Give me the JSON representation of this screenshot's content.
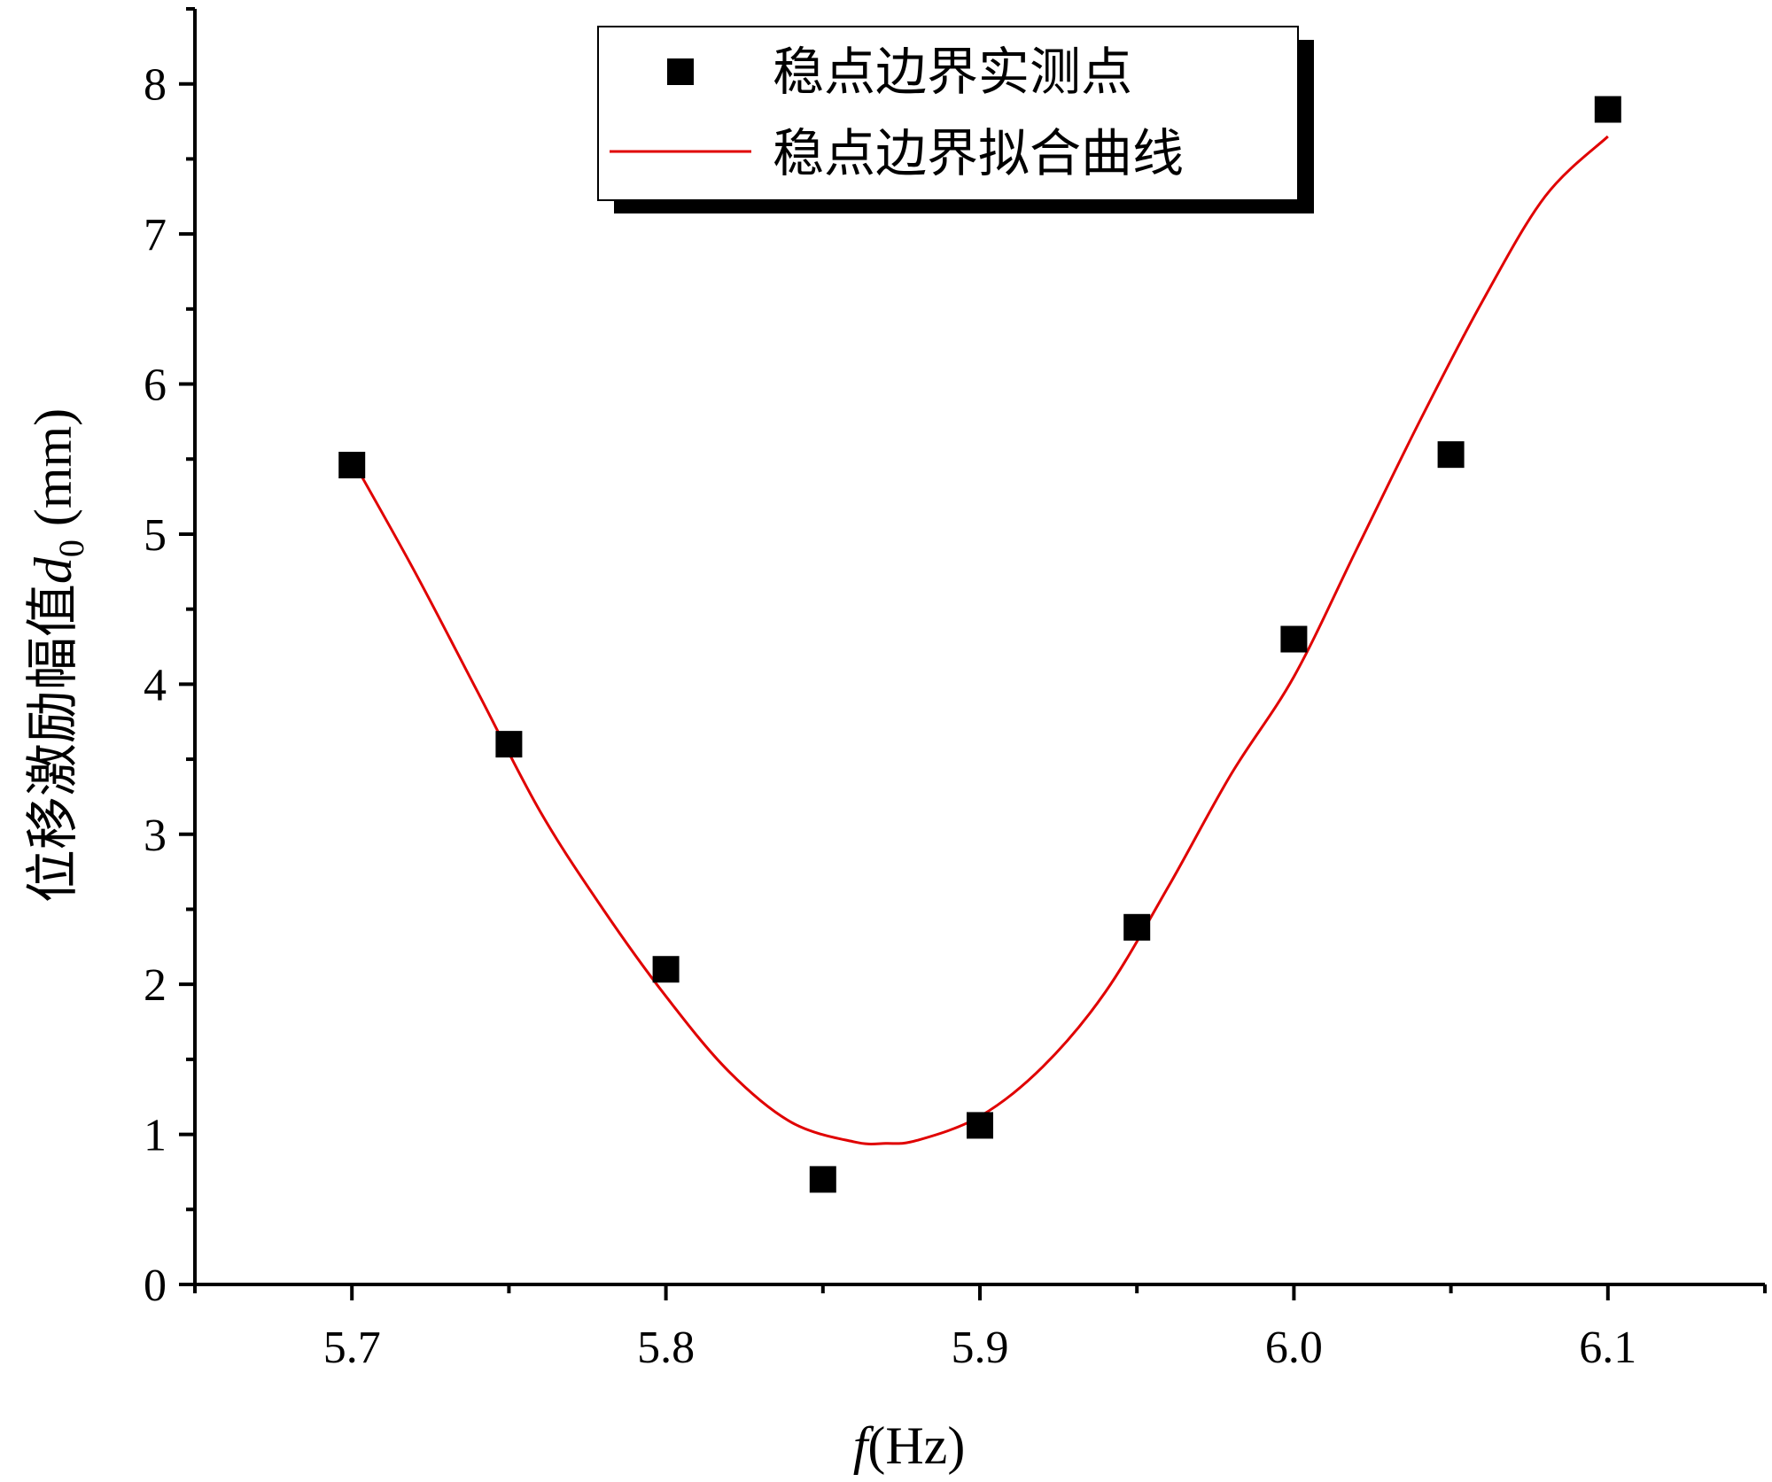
{
  "chart_data": {
    "type": "scatter",
    "xlabel": {
      "italic": "f",
      "rest": "(Hz)"
    },
    "ylabel": {
      "main": "位移激励幅值",
      "italic": "d",
      "sub": "0",
      "rest": " (mm)"
    },
    "xlim": [
      5.65,
      6.15
    ],
    "ylim": [
      0,
      8.5
    ],
    "xticks": [
      5.7,
      5.8,
      5.9,
      6.0,
      6.1
    ],
    "xtick_labels": [
      "5.7",
      "5.8",
      "5.9",
      "6.0",
      "6.1"
    ],
    "yticks": [
      0,
      1,
      2,
      3,
      4,
      5,
      6,
      7,
      8
    ],
    "ytick_labels": [
      "0",
      "1",
      "2",
      "3",
      "4",
      "5",
      "6",
      "7",
      "8"
    ],
    "grid": false,
    "legend_position": "top-center",
    "series": [
      {
        "name": "稳点边界实测点",
        "kind": "scatter",
        "marker": "square",
        "color": "#000000",
        "x": [
          5.7,
          5.75,
          5.8,
          5.85,
          5.9,
          5.95,
          6.0,
          6.05,
          6.1
        ],
        "y": [
          5.46,
          3.6,
          2.1,
          0.7,
          1.06,
          2.38,
          4.3,
          5.53,
          7.83
        ]
      },
      {
        "name": "稳点边界拟合曲线",
        "kind": "line",
        "color": "#e00000",
        "x": [
          5.7,
          5.72,
          5.74,
          5.76,
          5.78,
          5.8,
          5.82,
          5.84,
          5.86,
          5.87,
          5.88,
          5.9,
          5.92,
          5.94,
          5.96,
          5.98,
          6.0,
          6.02,
          6.04,
          6.06,
          6.08,
          6.1
        ],
        "y": [
          5.5,
          4.75,
          3.95,
          3.15,
          2.5,
          1.92,
          1.42,
          1.08,
          0.95,
          0.94,
          0.96,
          1.12,
          1.45,
          1.95,
          2.65,
          3.4,
          4.05,
          4.9,
          5.75,
          6.55,
          7.25,
          7.65
        ]
      }
    ]
  }
}
